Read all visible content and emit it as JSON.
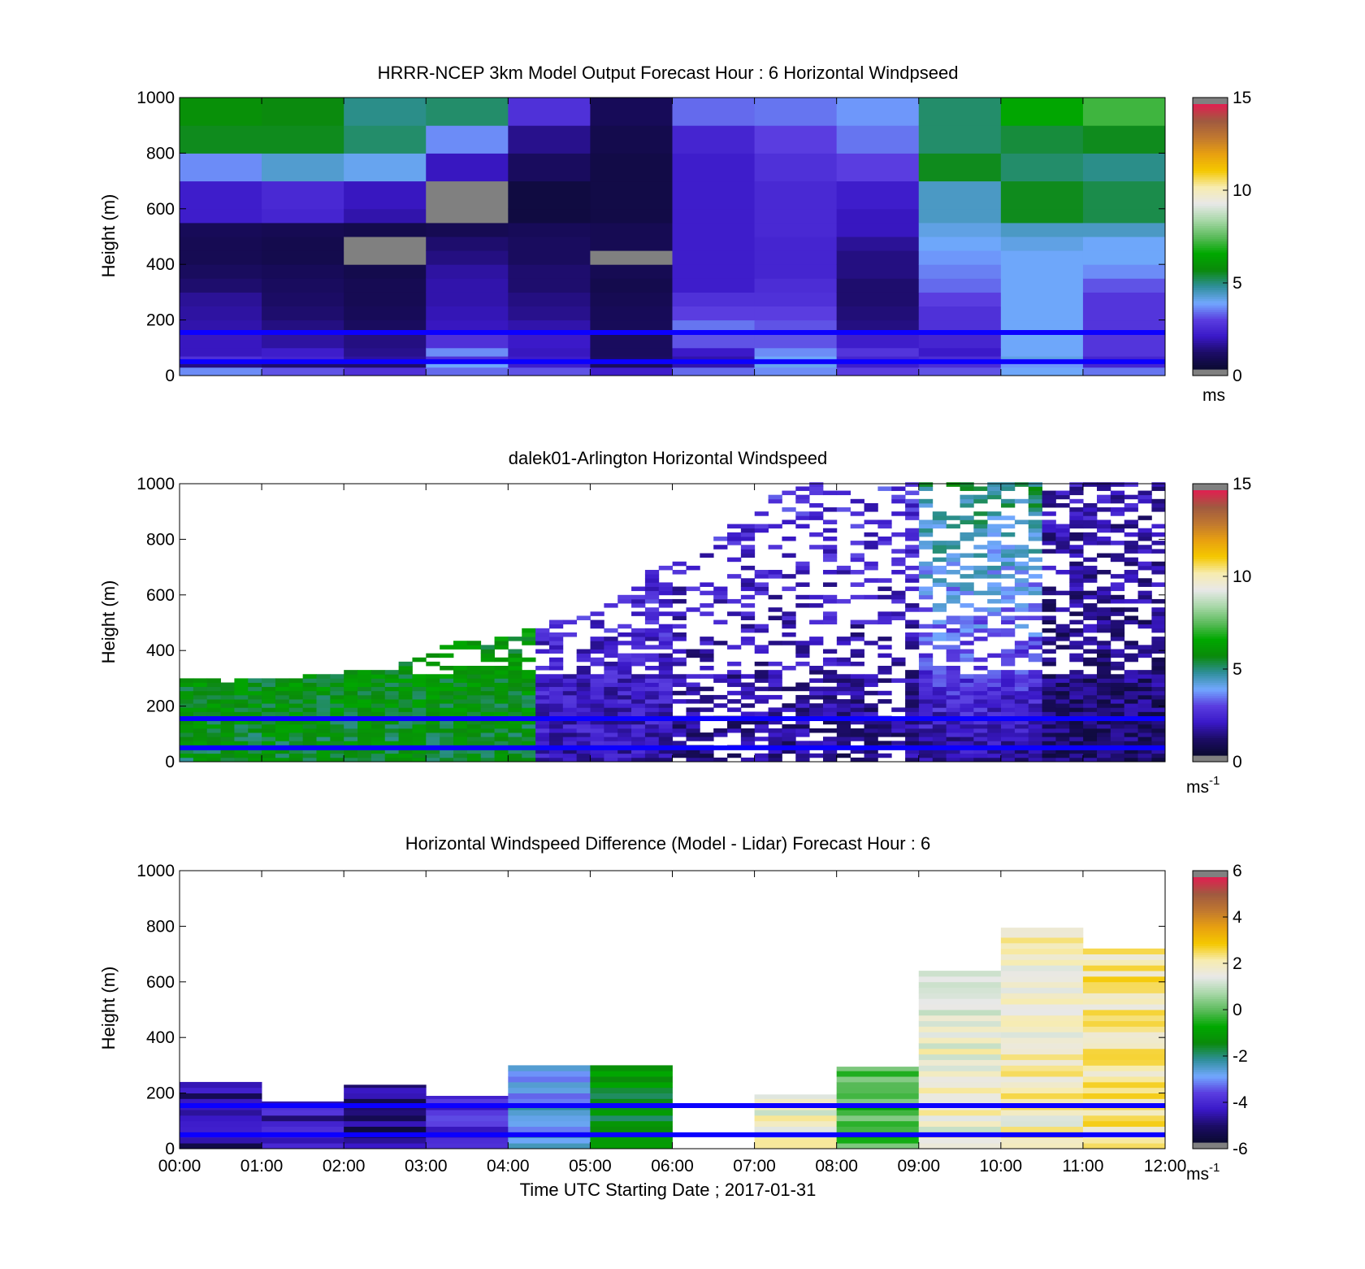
{
  "chart_data": [
    {
      "type": "heatmap",
      "title": "HRRR-NCEP 3km Model Output   Forecast Hour : 6 Horizontal Windpseed",
      "ylabel": "Height (m)",
      "xlabel": "",
      "ylim": [
        0,
        1000
      ],
      "yticks": [
        "0",
        "200",
        "400",
        "600",
        "800",
        "1000"
      ],
      "x_range_hours": [
        0,
        12
      ],
      "colorbar": {
        "min": 0,
        "max": 15,
        "ticks": [
          "0",
          "5",
          "10",
          "15"
        ],
        "unit": "ms",
        "unit_sup": ""
      },
      "columns_x_hours": [
        0,
        1,
        2,
        3,
        4,
        5,
        6,
        7,
        8,
        9,
        10,
        11,
        12
      ],
      "heights_m": [
        0,
        30,
        50,
        70,
        100,
        150,
        200,
        250,
        300,
        350,
        400,
        450,
        500,
        550,
        600,
        700,
        800,
        900,
        1000
      ],
      "values_ms": [
        [
          3.5,
          1.2,
          2.5,
          1.8,
          1.8,
          1.6,
          1.5,
          1.4,
          1.0,
          0.8,
          0.6,
          0.6,
          0.7,
          2.0,
          2.0,
          3.5,
          5.5,
          5.8,
          6.5
        ],
        [
          3.0,
          1.0,
          2.2,
          2.0,
          1.5,
          1.2,
          1.0,
          0.9,
          0.8,
          0.7,
          0.5,
          0.5,
          0.6,
          2.2,
          2.3,
          4.2,
          5.5,
          5.6,
          6.3
        ],
        [
          2.5,
          1.0,
          1.5,
          1.3,
          1.2,
          0.8,
          0.7,
          0.6,
          0.6,
          0.5,
          0.0,
          0.0,
          0.5,
          1.6,
          1.8,
          3.9,
          5.0,
          4.8,
          5.5
        ],
        [
          3.2,
          3.8,
          2.5,
          3.5,
          2.5,
          1.8,
          1.7,
          1.6,
          1.6,
          1.5,
          1.2,
          1.0,
          0.6,
          0.0,
          0.0,
          1.8,
          3.5,
          5.0,
          4.5
        ],
        [
          3.0,
          2.0,
          2.0,
          1.8,
          1.9,
          1.6,
          1.3,
          1.2,
          1.0,
          1.0,
          0.8,
          0.8,
          0.7,
          0.3,
          0.3,
          0.8,
          1.3,
          2.5,
          3.5
        ],
        [
          2.0,
          0.8,
          0.9,
          0.8,
          0.8,
          0.7,
          0.7,
          0.6,
          0.5,
          0.6,
          0.0,
          0.6,
          0.6,
          0.4,
          0.4,
          0.4,
          0.5,
          0.7,
          1.0
        ],
        [
          3.2,
          1.6,
          1.6,
          1.9,
          3.0,
          3.3,
          2.8,
          2.5,
          2.0,
          2.0,
          2.0,
          2.0,
          2.0,
          2.0,
          2.0,
          2.0,
          2.2,
          3.2,
          3.5
        ],
        [
          3.5,
          3.9,
          3.8,
          3.5,
          3.0,
          3.0,
          2.8,
          2.5,
          2.4,
          2.2,
          2.2,
          2.2,
          2.3,
          2.3,
          2.3,
          2.5,
          2.8,
          3.3,
          3.3
        ],
        [
          2.8,
          2.0,
          2.2,
          2.6,
          2.0,
          1.2,
          1.1,
          1.0,
          1.0,
          1.2,
          1.2,
          1.4,
          1.8,
          1.8,
          2.0,
          2.8,
          3.3,
          3.6,
          4.1
        ],
        [
          3.0,
          2.4,
          2.4,
          1.9,
          2.2,
          2.5,
          2.5,
          2.8,
          3.2,
          3.4,
          3.6,
          3.8,
          4.0,
          4.3,
          4.3,
          5.5,
          5.0,
          5.0,
          5.8
        ],
        [
          3.8,
          3.6,
          4.0,
          3.8,
          3.8,
          3.8,
          3.8,
          3.8,
          3.8,
          3.8,
          3.8,
          4.0,
          4.3,
          5.5,
          5.5,
          5.0,
          5.3,
          6.5,
          7.8
        ],
        [
          3.3,
          2.2,
          2.2,
          2.6,
          2.6,
          2.6,
          2.6,
          2.6,
          3.0,
          3.5,
          3.8,
          3.8,
          4.3,
          5.2,
          5.2,
          4.8,
          5.5,
          7.2,
          9.5
        ]
      ]
    },
    {
      "type": "heatmap",
      "title": "dalek01-Arlington  Horizontal Windspeed",
      "ylabel": "Height (m)",
      "xlabel": "",
      "ylim": [
        0,
        1000
      ],
      "yticks": [
        "0",
        "200",
        "400",
        "600",
        "800",
        "1000"
      ],
      "x_range_hours": [
        0,
        12
      ],
      "colorbar": {
        "min": 0,
        "max": 15,
        "ticks": [
          "0",
          "5",
          "10",
          "15"
        ],
        "unit": "ms",
        "unit_sup": "-1"
      },
      "time_step_hours": 0.1667,
      "height_step_m": 15,
      "observation_tops_m": [
        290,
        290,
        290,
        280,
        290,
        290,
        290,
        300,
        300,
        310,
        310,
        310,
        320,
        320,
        320,
        340,
        350,
        370,
        380,
        420,
        430,
        440,
        450,
        450,
        460,
        470,
        480,
        500,
        510,
        520,
        530,
        560,
        600,
        640,
        680,
        700,
        720,
        750,
        780,
        820,
        860,
        900,
        940,
        960,
        980,
        990,
        1000,
        1000,
        1000,
        1000,
        1000,
        1000,
        1000,
        1000,
        1000,
        1000,
        1000,
        1000,
        1000,
        1000,
        1000,
        1000,
        1000,
        1000,
        1000,
        1000,
        1000,
        1000,
        1000,
        1000,
        1000,
        1000
      ],
      "speed_profile_ms": [
        {
          "hours": [
            0,
            4.25
          ],
          "low_m": 5.5,
          "high_m": 6.5
        },
        {
          "hours": [
            4.25,
            6
          ],
          "low_m": 1.8,
          "high_m": 2.6
        },
        {
          "hours": [
            6,
            9
          ],
          "low_m": 1.2,
          "high_m": 2.5
        },
        {
          "hours": [
            9,
            10.5
          ],
          "low_m": 1.5,
          "high_m": 5.0
        },
        {
          "hours": [
            10.5,
            12
          ],
          "low_m": 0.8,
          "high_m": 1.8
        }
      ]
    },
    {
      "type": "heatmap",
      "title": "Horizontal Windspeed Difference (Model - Lidar) Forecast Hour : 6",
      "ylabel": "Height (m)",
      "xlabel": "Time UTC  Starting Date ; 2017-01-31",
      "ylim": [
        0,
        1000
      ],
      "yticks": [
        "0",
        "200",
        "400",
        "600",
        "800",
        "1000"
      ],
      "x_range_hours": [
        0,
        12
      ],
      "xticks": [
        "00:00",
        "01:00",
        "02:00",
        "03:00",
        "04:00",
        "05:00",
        "06:00",
        "07:00",
        "08:00",
        "09:00",
        "10:00",
        "11:00",
        "12:00"
      ],
      "colorbar": {
        "min": -6,
        "max": 6,
        "ticks": [
          "-6",
          "-4",
          "-2",
          "0",
          "2",
          "4",
          "6"
        ],
        "unit": "ms",
        "unit_sup": "-1"
      },
      "blocks": [
        {
          "hours": [
            0,
            1
          ],
          "top_m": 240,
          "diff_ms": -5.0
        },
        {
          "hours": [
            1,
            2
          ],
          "top_m": 170,
          "diff_ms": -4.6
        },
        {
          "hours": [
            2,
            3
          ],
          "top_m": 230,
          "diff_ms": -5.1
        },
        {
          "hours": [
            3,
            4
          ],
          "top_m": 190,
          "diff_ms": -4.2
        },
        {
          "hours": [
            4,
            5
          ],
          "top_m": 300,
          "diff_ms": -2.9
        },
        {
          "hours": [
            5,
            6
          ],
          "top_m": 300,
          "diff_ms": -1.5
        },
        {
          "hours": [
            7,
            8
          ],
          "top_m": 195,
          "diff_ms": 1.8
        },
        {
          "hours": [
            8,
            9
          ],
          "top_m": 295,
          "diff_ms": -0.3
        },
        {
          "hours": [
            9,
            10
          ],
          "top_m": 640,
          "diff_ms": 1.7
        },
        {
          "hours": [
            10,
            11
          ],
          "top_m": 795,
          "diff_ms": 2.0
        },
        {
          "hours": [
            11,
            12
          ],
          "top_m": 720,
          "diff_ms": 2.3
        }
      ]
    }
  ],
  "guide_lines_m": [
    50,
    155
  ],
  "colors": {
    "guide_line": "#0b00ff",
    "colormap": [
      "#1a1a1a",
      "#0a0a30",
      "#1c0c66",
      "#3a18c8",
      "#5a3ee0",
      "#72a8ff",
      "#2f8f9a",
      "#0a8a0a",
      "#00a800",
      "#5cbb5c",
      "#a8d8a8",
      "#e8e8e8",
      "#f7ecb0",
      "#f5c800",
      "#e8a010",
      "#c07830",
      "#a05a40",
      "#e02050",
      "#808080"
    ]
  }
}
